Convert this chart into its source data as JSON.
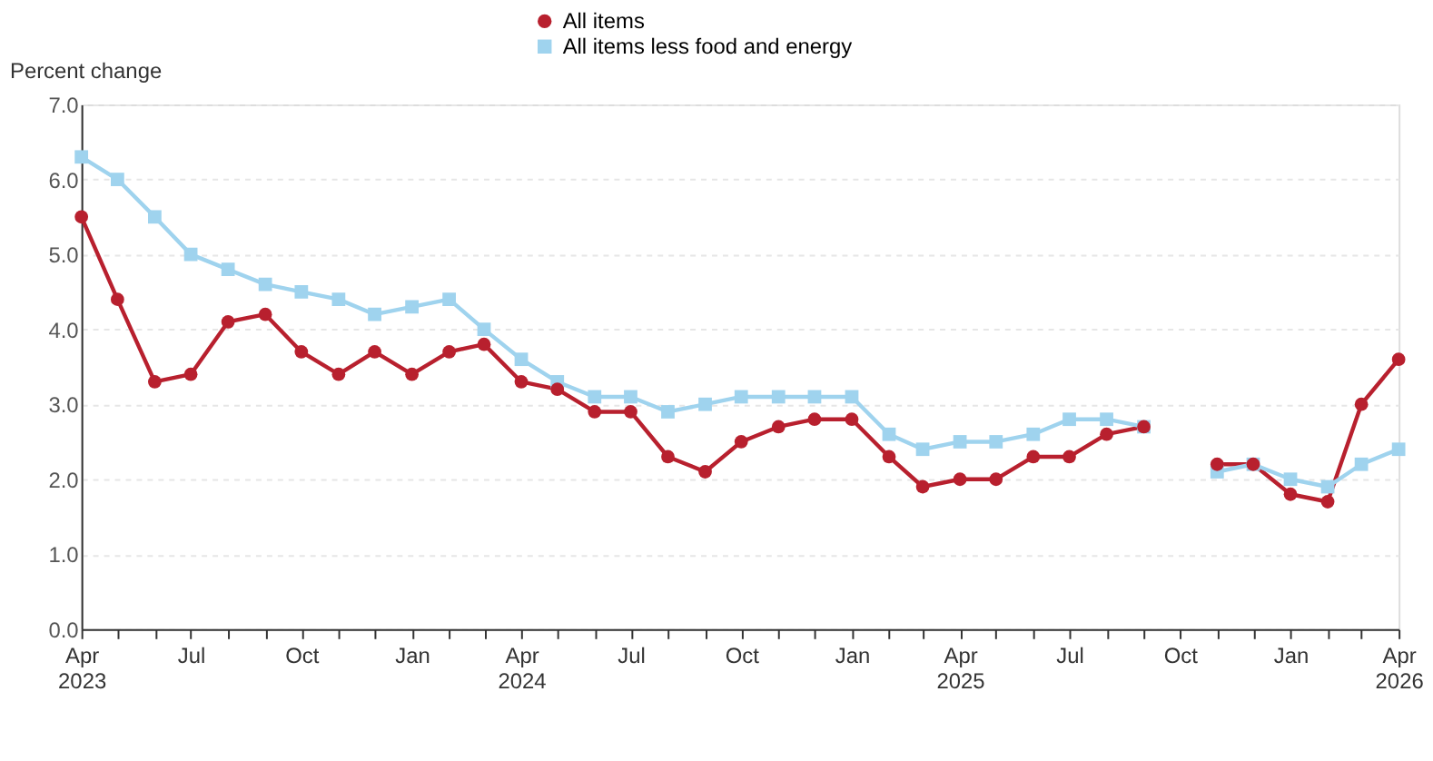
{
  "chart_data": {
    "type": "line",
    "ylabel": "Percent change",
    "x": [
      "2023-04",
      "2023-05",
      "2023-06",
      "2023-07",
      "2023-08",
      "2023-09",
      "2023-10",
      "2023-11",
      "2023-12",
      "2024-01",
      "2024-02",
      "2024-03",
      "2024-04",
      "2024-05",
      "2024-06",
      "2024-07",
      "2024-08",
      "2024-09",
      "2024-10",
      "2024-11",
      "2024-12",
      "2025-01",
      "2025-02",
      "2025-03",
      "2025-04",
      "2025-05",
      "2025-06",
      "2025-07",
      "2025-08",
      "2025-09",
      "2025-10",
      "2025-11",
      "2025-12",
      "2026-01",
      "2026-02",
      "2026-03",
      "2026-04"
    ],
    "series": [
      {
        "name": "All items",
        "color": "#b8202e",
        "marker": "circle",
        "values": [
          5.5,
          4.4,
          3.3,
          3.4,
          4.1,
          4.2,
          3.7,
          3.4,
          3.7,
          3.4,
          3.7,
          3.8,
          3.3,
          3.2,
          2.9,
          2.9,
          2.3,
          2.1,
          2.5,
          2.7,
          2.8,
          2.8,
          2.3,
          1.9,
          2.0,
          2.0,
          2.3,
          2.3,
          2.6,
          2.7,
          null,
          2.2,
          2.2,
          1.8,
          1.7,
          3.0,
          3.6
        ]
      },
      {
        "name": "All items less food and energy",
        "color": "#9fd3ee",
        "marker": "square",
        "values": [
          6.3,
          6.0,
          5.5,
          5.0,
          4.8,
          4.6,
          4.5,
          4.4,
          4.2,
          4.3,
          4.4,
          4.0,
          3.6,
          3.3,
          3.1,
          3.1,
          2.9,
          3.0,
          3.1,
          3.1,
          3.1,
          3.1,
          2.6,
          2.4,
          2.5,
          2.5,
          2.6,
          2.8,
          2.8,
          2.7,
          null,
          2.1,
          2.2,
          2.0,
          1.9,
          2.2,
          2.4
        ]
      }
    ],
    "xlim": [
      "2023-04",
      "2026-04"
    ],
    "xticks": [
      {
        "value": "2023-04",
        "label": "Apr\n2023"
      },
      {
        "value": "2023-05",
        "label": null
      },
      {
        "value": "2023-06",
        "label": null
      },
      {
        "value": "2023-07",
        "label": "Jul"
      },
      {
        "value": "2023-08",
        "label": null
      },
      {
        "value": "2023-09",
        "label": null
      },
      {
        "value": "2023-10",
        "label": "Oct"
      },
      {
        "value": "2023-11",
        "label": null
      },
      {
        "value": "2023-12",
        "label": null
      },
      {
        "value": "2024-01",
        "label": "Jan"
      },
      {
        "value": "2024-02",
        "label": null
      },
      {
        "value": "2024-03",
        "label": null
      },
      {
        "value": "2024-04",
        "label": "Apr\n2024"
      },
      {
        "value": "2024-05",
        "label": null
      },
      {
        "value": "2024-06",
        "label": null
      },
      {
        "value": "2024-07",
        "label": "Jul"
      },
      {
        "value": "2024-08",
        "label": null
      },
      {
        "value": "2024-09",
        "label": null
      },
      {
        "value": "2024-10",
        "label": "Oct"
      },
      {
        "value": "2024-11",
        "label": null
      },
      {
        "value": "2024-12",
        "label": null
      },
      {
        "value": "2025-01",
        "label": "Jan"
      },
      {
        "value": "2025-02",
        "label": null
      },
      {
        "value": "2025-03",
        "label": null
      },
      {
        "value": "2025-04",
        "label": "Apr\n2025"
      },
      {
        "value": "2025-05",
        "label": null
      },
      {
        "value": "2025-06",
        "label": null
      },
      {
        "value": "2025-07",
        "label": "Jul"
      },
      {
        "value": "2025-08",
        "label": null
      },
      {
        "value": "2025-09",
        "label": null
      },
      {
        "value": "2025-10",
        "label": "Oct"
      },
      {
        "value": "2025-11",
        "label": null
      },
      {
        "value": "2025-12",
        "label": null
      },
      {
        "value": "2026-01",
        "label": "Jan"
      },
      {
        "value": "2026-02",
        "label": null
      },
      {
        "value": "2026-03",
        "label": null
      },
      {
        "value": "2026-04",
        "label": "Apr\n2026"
      }
    ],
    "ylim": [
      0,
      7
    ],
    "yticks": [
      {
        "value": 0,
        "label": "0.0"
      },
      {
        "value": 1,
        "label": "1.0"
      },
      {
        "value": 2,
        "label": "2.0"
      },
      {
        "value": 3,
        "label": "3.0"
      },
      {
        "value": 4,
        "label": "4.0"
      },
      {
        "value": 5,
        "label": "5.0"
      },
      {
        "value": 6,
        "label": "6.0"
      },
      {
        "value": 7,
        "label": "7.0"
      }
    ],
    "grid": "y",
    "legend": "top"
  }
}
